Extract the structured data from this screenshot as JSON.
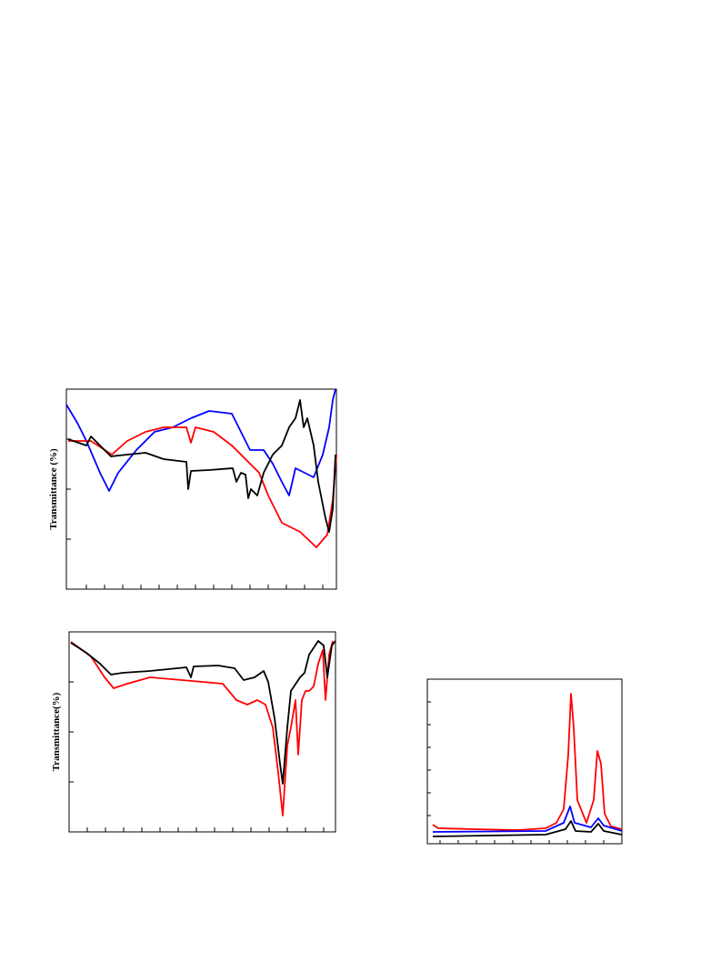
{
  "figure_a": {
    "y_label": "Transmittance (%)"
  },
  "figure_b": {
    "y_label": "Transmittance(%)"
  }
}
